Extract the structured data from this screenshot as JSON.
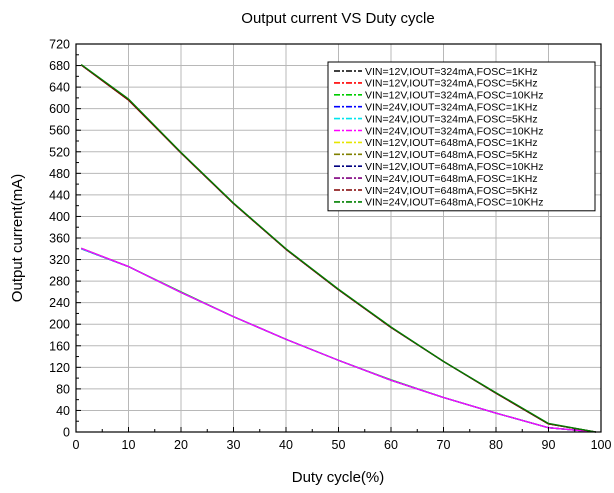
{
  "chart_data": {
    "type": "line",
    "title": "Output current VS Duty cycle",
    "xlabel": "Duty cycle(%)",
    "ylabel": "Output current(mA)",
    "xlim": [
      0,
      100
    ],
    "ylim": [
      0,
      720
    ],
    "x_ticks": [
      0,
      10,
      20,
      30,
      40,
      50,
      60,
      70,
      80,
      90,
      100
    ],
    "y_ticks": [
      0,
      40,
      80,
      120,
      160,
      200,
      240,
      280,
      320,
      360,
      400,
      440,
      480,
      520,
      560,
      600,
      640,
      680,
      720
    ],
    "grid": true,
    "legend_position": "top-right",
    "x": [
      1,
      10,
      20,
      30,
      40,
      50,
      60,
      70,
      80,
      90,
      99
    ],
    "series": [
      {
        "name": "VIN=12V,IOUT=324mA,FOSC=1KHz",
        "color": "#000000",
        "values": [
          340,
          307,
          259,
          214,
          172,
          133,
          96,
          64,
          35,
          8,
          0
        ]
      },
      {
        "name": "VIN=12V,IOUT=324mA,FOSC=5KHz",
        "color": "#ff0000",
        "values": [
          340,
          307,
          259,
          214,
          172,
          133,
          96,
          64,
          35,
          8,
          0
        ]
      },
      {
        "name": "VIN=12V,IOUT=324mA,FOSC=10KHz",
        "color": "#00cc00",
        "values": [
          341,
          307,
          260,
          214,
          172,
          133,
          97,
          64,
          35,
          8,
          0
        ]
      },
      {
        "name": "VIN=24V,IOUT=324mA,FOSC=1KHz",
        "color": "#0000ff",
        "values": [
          340,
          307,
          259,
          214,
          172,
          133,
          96,
          64,
          35,
          8,
          0
        ]
      },
      {
        "name": "VIN=24V,IOUT=324mA,FOSC=5KHz",
        "color": "#00e5ee",
        "values": [
          340,
          307,
          259,
          214,
          172,
          133,
          96,
          64,
          35,
          8,
          0
        ]
      },
      {
        "name": "VIN=24V,IOUT=324mA,FOSC=10KHz",
        "color": "#ff00ff",
        "values": [
          341,
          307,
          259,
          214,
          172,
          133,
          96,
          64,
          35,
          8,
          0
        ]
      },
      {
        "name": "VIN=12V,IOUT=648mA,FOSC=1KHz",
        "color": "#e6e600",
        "values": [
          681,
          616,
          518,
          424,
          339,
          264,
          194,
          131,
          72,
          15,
          0
        ]
      },
      {
        "name": "VIN=12V,IOUT=648mA,FOSC=5KHz",
        "color": "#808000",
        "values": [
          681,
          616,
          518,
          424,
          339,
          264,
          194,
          131,
          72,
          15,
          0
        ]
      },
      {
        "name": "VIN=12V,IOUT=648mA,FOSC=10KHz",
        "color": "#000080",
        "values": [
          681,
          617,
          518,
          424,
          339,
          264,
          194,
          131,
          72,
          15,
          0
        ]
      },
      {
        "name": "VIN=24V,IOUT=648mA,FOSC=1KHz",
        "color": "#800080",
        "values": [
          681,
          616,
          518,
          424,
          339,
          264,
          194,
          131,
          72,
          15,
          0
        ]
      },
      {
        "name": "VIN=24V,IOUT=648mA,FOSC=5KHz",
        "color": "#800000",
        "values": [
          681,
          616,
          518,
          424,
          339,
          264,
          194,
          131,
          72,
          15,
          0
        ]
      },
      {
        "name": "VIN=24V,IOUT=648mA,FOSC=10KHz",
        "color": "#008000",
        "values": [
          682,
          618,
          519,
          425,
          340,
          265,
          195,
          131,
          73,
          16,
          0
        ]
      }
    ]
  }
}
